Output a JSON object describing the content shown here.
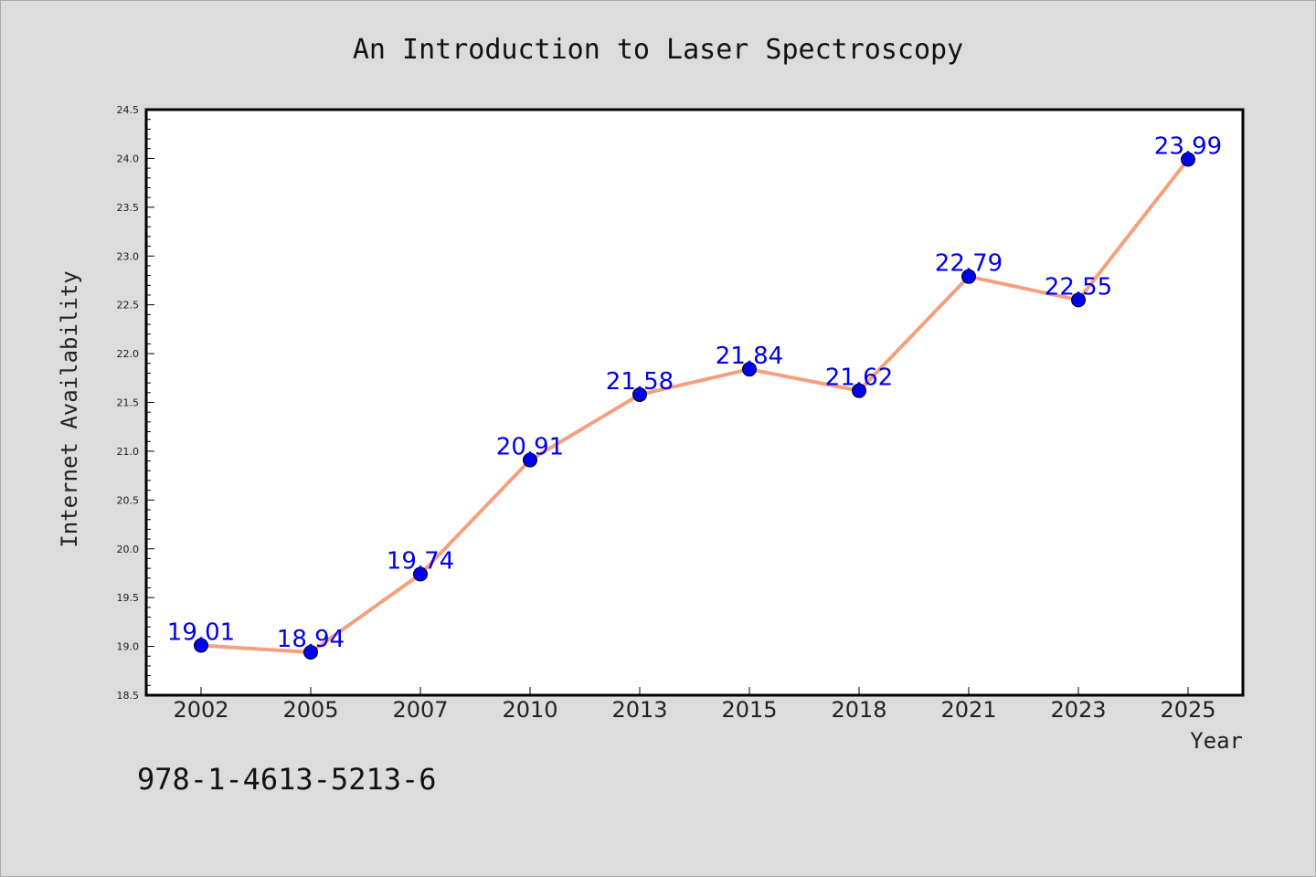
{
  "chart_data": {
    "type": "line",
    "title": "An Introduction to Laser Spectroscopy",
    "xlabel": "Year",
    "ylabel": "Internet Availability",
    "categories": [
      "2002",
      "2005",
      "2007",
      "2010",
      "2013",
      "2015",
      "2018",
      "2021",
      "2023",
      "2025"
    ],
    "series": [
      {
        "values": [
          19.01,
          18.94,
          19.74,
          20.91,
          21.58,
          21.84,
          21.62,
          22.79,
          22.55,
          23.99
        ],
        "labels": [
          "19.01",
          "18.94",
          "19.74",
          "20.91",
          "21.58",
          "21.84",
          "21.62",
          "22.79",
          "22.55",
          "23.99"
        ],
        "line_color": "#f4a07e",
        "marker_color": "#0000ee"
      }
    ],
    "ylim": [
      18.5,
      24.5
    ],
    "yticks": [
      "18.5",
      "19.0",
      "19.5",
      "20.0",
      "20.5",
      "21.0",
      "21.5",
      "22.0",
      "22.5",
      "23.0",
      "23.5",
      "24.0",
      "24.5"
    ],
    "grid": false,
    "legend": "none"
  },
  "footer": {
    "isbn": "978-1-4613-5213-6"
  },
  "colors": {
    "background": "#dcdcdc",
    "plot_background": "#ffffff",
    "label_color": "#0000ee"
  }
}
